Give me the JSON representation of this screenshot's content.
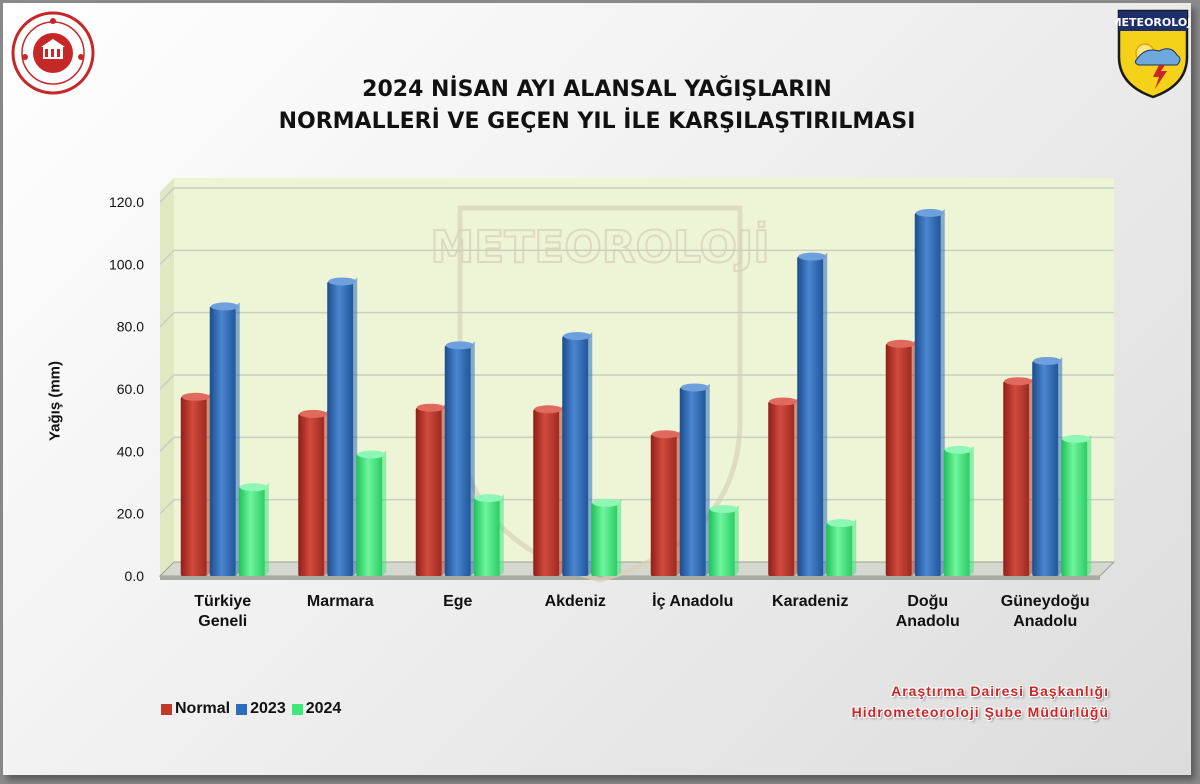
{
  "title": {
    "line1": "2024 NİSAN AYI ALANSAL YAĞIŞLARIN",
    "line2": "NORMALLERİ VE GEÇEN YIL İLE KARŞILAŞTIRILMASI"
  },
  "logos": {
    "left": "government-seal",
    "right": "meteoroloji-emblem",
    "right_text": "METEOROLOJİ",
    "watermark_text": "METEOROLOJİ"
  },
  "credits": {
    "line1": "Araştırma Dairesi Başkanlığı",
    "line2": "Hidrometeoroloji Şube Müdürlüğü"
  },
  "colors": {
    "normal": "#c0392b",
    "y2023": "#2e6dbb",
    "y2024": "#3ee87a",
    "plot_bg": "#eef5d6",
    "grid": "#c9cfc3"
  },
  "chart_data": {
    "type": "bar",
    "title": "2024 NİSAN AYI ALANSAL YAĞIŞLARIN NORMALLERİ VE GEÇEN YIL İLE KARŞILAŞTIRILMASI",
    "xlabel": "",
    "ylabel": "Yağış (mm)",
    "ylim": [
      0,
      120
    ],
    "yticks": [
      "0.0",
      "20.0",
      "40.0",
      "60.0",
      "80.0",
      "100.0",
      "120.0"
    ],
    "grid": true,
    "legend_position": "bottom-left",
    "categories": [
      [
        "Türkiye",
        "Geneli"
      ],
      [
        "Marmara"
      ],
      [
        "Ege"
      ],
      [
        "Akdeniz"
      ],
      [
        "İç Anadolu"
      ],
      [
        "Karadeniz"
      ],
      [
        "Doğu",
        "Anadolu"
      ],
      [
        "Güneydoğu",
        "Anadolu"
      ]
    ],
    "series": [
      {
        "name": "Normal",
        "color": "#c0392b",
        "values": [
          57.5,
          52.0,
          54.0,
          53.5,
          45.5,
          56.0,
          74.5,
          62.5
        ]
      },
      {
        "name": "2023",
        "color": "#2e6dbb",
        "values": [
          86.5,
          94.5,
          74.0,
          77.0,
          60.5,
          102.5,
          116.5,
          69.0
        ]
      },
      {
        "name": "2024",
        "color": "#3ee87a",
        "values": [
          28.5,
          39.0,
          25.0,
          23.5,
          21.5,
          17.0,
          40.5,
          44.0
        ]
      }
    ]
  }
}
